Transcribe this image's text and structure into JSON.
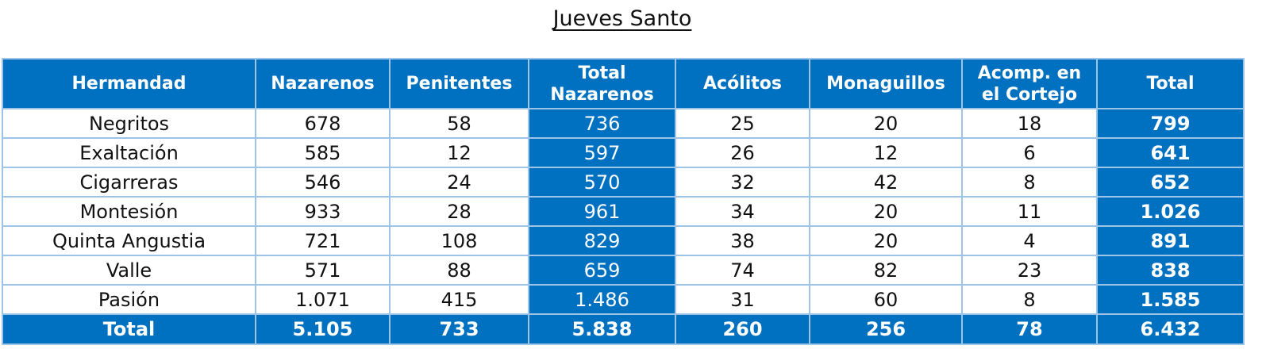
{
  "title": "Jueves Santo",
  "table": {
    "header": [
      [
        "Hermandad"
      ],
      [
        "Nazarenos"
      ],
      [
        "Penitentes"
      ],
      [
        "Total",
        "Nazarenos"
      ],
      [
        "Acólitos"
      ],
      [
        "Monaguillos"
      ],
      [
        "Acomp. en",
        "el Cortejo"
      ],
      [
        "Total"
      ]
    ],
    "rows": [
      [
        "Negritos",
        "678",
        "58",
        "736",
        "25",
        "20",
        "18",
        "799"
      ],
      [
        "Exaltación",
        "585",
        "12",
        "597",
        "26",
        "12",
        "6",
        "641"
      ],
      [
        "Cigarreras",
        "546",
        "24",
        "570",
        "32",
        "42",
        "8",
        "652"
      ],
      [
        "Montesión",
        "933",
        "28",
        "961",
        "34",
        "20",
        "11",
        "1.026"
      ],
      [
        "Quinta Angustia",
        "721",
        "108",
        "829",
        "38",
        "20",
        "4",
        "891"
      ],
      [
        "Valle",
        "571",
        "88",
        "659",
        "74",
        "82",
        "23",
        "838"
      ],
      [
        "Pasión",
        "1.071",
        "415",
        "1.486",
        "31",
        "60",
        "8",
        "1.585"
      ]
    ],
    "total_row": [
      "Total",
      "5.105",
      "733",
      "5.838",
      "260",
      "256",
      "78",
      "6.432"
    ]
  }
}
